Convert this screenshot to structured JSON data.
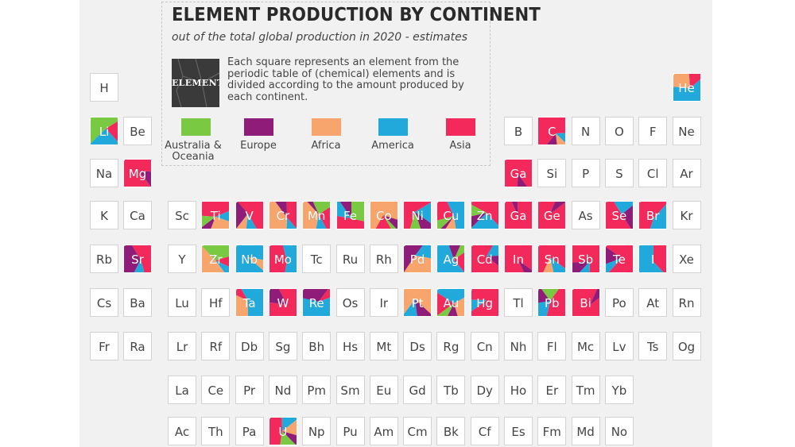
{
  "chart_data": {
    "type": "table",
    "title": "ELEMENT PRODUCTION BY CONTINENT",
    "subtitle": "out of the total global production in 2020 - estimates",
    "description": "Each square represents an element from the periodic table of (chemical) elements and is divided according to the amount produced by each continent.",
    "example_label": "ELEMENT",
    "continents": [
      {
        "key": "oceania",
        "name": "Australia & Oceania",
        "color": "#7ac943"
      },
      {
        "key": "europe",
        "name": "Europe",
        "color": "#8e1c78"
      },
      {
        "key": "africa",
        "name": "Africa",
        "color": "#f7a56c"
      },
      {
        "key": "america",
        "name": "America",
        "color": "#22a9dc"
      },
      {
        "key": "asia",
        "name": "Asia",
        "color": "#f2295a"
      }
    ],
    "elements": [
      {
        "s": "H",
        "r": 1,
        "c": 1
      },
      {
        "s": "He",
        "r": 1,
        "c": 18,
        "share": {
          "africa": 0.25,
          "america": 0.6,
          "asia": 0.15
        }
      },
      {
        "s": "Li",
        "r": 2,
        "c": 1,
        "share": {
          "oceania": 0.5,
          "america": 0.3,
          "asia": 0.2
        }
      },
      {
        "s": "Be",
        "r": 2,
        "c": 2
      },
      {
        "s": "B",
        "r": 2,
        "c": 13
      },
      {
        "s": "C",
        "r": 2,
        "c": 14,
        "share": {
          "asia": 0.7,
          "europe": 0.1,
          "america": 0.1,
          "africa": 0.1
        }
      },
      {
        "s": "N",
        "r": 2,
        "c": 15
      },
      {
        "s": "O",
        "r": 2,
        "c": 16
      },
      {
        "s": "F",
        "r": 2,
        "c": 17
      },
      {
        "s": "Ne",
        "r": 2,
        "c": 18
      },
      {
        "s": "Na",
        "r": 3,
        "c": 1
      },
      {
        "s": "Mg",
        "r": 3,
        "c": 2,
        "share": {
          "asia": 0.85,
          "europe": 0.15
        }
      },
      {
        "s": "Ga",
        "r": 3,
        "c": 13,
        "share": {
          "asia": 0.9,
          "europe": 0.1
        }
      },
      {
        "s": "Si",
        "r": 3,
        "c": 14
      },
      {
        "s": "P",
        "r": 3,
        "c": 15
      },
      {
        "s": "S",
        "r": 3,
        "c": 16
      },
      {
        "s": "Cl",
        "r": 3,
        "c": 17
      },
      {
        "s": "Ar",
        "r": 3,
        "c": 18
      },
      {
        "s": "K",
        "r": 4,
        "c": 1
      },
      {
        "s": "Ca",
        "r": 4,
        "c": 2
      },
      {
        "s": "Sc",
        "r": 4,
        "c": 3
      },
      {
        "s": "Ti",
        "r": 4,
        "c": 4,
        "share": {
          "africa": 0.25,
          "asia": 0.45,
          "oceania": 0.1,
          "america": 0.1,
          "europe": 0.1
        }
      },
      {
        "s": "V",
        "r": 4,
        "c": 5,
        "share": {
          "asia": 0.55,
          "europe": 0.25,
          "america": 0.1,
          "africa": 0.1
        }
      },
      {
        "s": "Cr",
        "r": 4,
        "c": 6,
        "share": {
          "africa": 0.45,
          "asia": 0.35,
          "europe": 0.1,
          "america": 0.1
        }
      },
      {
        "s": "Mn",
        "r": 4,
        "c": 7,
        "share": {
          "africa": 0.4,
          "asia": 0.25,
          "oceania": 0.2,
          "america": 0.1,
          "europe": 0.05
        }
      },
      {
        "s": "Fe",
        "r": 4,
        "c": 8,
        "share": {
          "asia": 0.45,
          "oceania": 0.3,
          "america": 0.15,
          "europe": 0.1
        }
      },
      {
        "s": "Co",
        "r": 4,
        "c": 9,
        "share": {
          "africa": 0.7,
          "asia": 0.15,
          "europe": 0.1,
          "oceania": 0.05
        }
      },
      {
        "s": "Ni",
        "r": 4,
        "c": 10,
        "share": {
          "asia": 0.55,
          "europe": 0.15,
          "oceania": 0.1,
          "america": 0.2
        }
      },
      {
        "s": "Cu",
        "r": 4,
        "c": 11,
        "share": {
          "america": 0.5,
          "asia": 0.25,
          "africa": 0.1,
          "oceania": 0.1,
          "europe": 0.05
        }
      },
      {
        "s": "Zn",
        "r": 4,
        "c": 12,
        "share": {
          "asia": 0.5,
          "america": 0.3,
          "oceania": 0.1,
          "europe": 0.1
        }
      },
      {
        "s": "Ga",
        "r": 4,
        "c": 13,
        "share": {
          "asia": 0.95,
          "europe": 0.05
        }
      },
      {
        "s": "Ge",
        "r": 4,
        "c": 14,
        "share": {
          "asia": 0.9,
          "europe": 0.1
        }
      },
      {
        "s": "As",
        "r": 4,
        "c": 15
      },
      {
        "s": "Se",
        "r": 4,
        "c": 16,
        "share": {
          "asia": 0.55,
          "europe": 0.25,
          "america": 0.2
        }
      },
      {
        "s": "Br",
        "r": 4,
        "c": 17,
        "share": {
          "america": 0.4,
          "asia": 0.6
        }
      },
      {
        "s": "Kr",
        "r": 4,
        "c": 18
      },
      {
        "s": "Rb",
        "r": 5,
        "c": 1
      },
      {
        "s": "Sr",
        "r": 5,
        "c": 2,
        "share": {
          "asia": 0.5,
          "europe": 0.4,
          "america": 0.1
        }
      },
      {
        "s": "Y",
        "r": 5,
        "c": 3
      },
      {
        "s": "Zr",
        "r": 5,
        "c": 4,
        "share": {
          "oceania": 0.35,
          "africa": 0.45,
          "america": 0.1,
          "asia": 0.1
        }
      },
      {
        "s": "Nb",
        "r": 5,
        "c": 5,
        "share": {
          "america": 0.9,
          "africa": 0.1
        }
      },
      {
        "s": "Mo",
        "r": 5,
        "c": 6,
        "share": {
          "asia": 0.5,
          "america": 0.5
        }
      },
      {
        "s": "Tc",
        "r": 5,
        "c": 7
      },
      {
        "s": "Ru",
        "r": 5,
        "c": 8
      },
      {
        "s": "Rh",
        "r": 5,
        "c": 9
      },
      {
        "s": "Pd",
        "r": 5,
        "c": 10,
        "share": {
          "europe": 0.4,
          "africa": 0.4,
          "america": 0.2
        }
      },
      {
        "s": "Ag",
        "r": 5,
        "c": 11,
        "share": {
          "america": 0.6,
          "asia": 0.2,
          "europe": 0.1,
          "oceania": 0.1
        }
      },
      {
        "s": "Cd",
        "r": 5,
        "c": 12,
        "share": {
          "asia": 0.75,
          "america": 0.15,
          "europe": 0.1
        }
      },
      {
        "s": "In",
        "r": 5,
        "c": 13,
        "share": {
          "asia": 0.9,
          "europe": 0.1
        }
      },
      {
        "s": "Sn",
        "r": 5,
        "c": 14,
        "share": {
          "asia": 0.75,
          "america": 0.15,
          "africa": 0.1
        }
      },
      {
        "s": "Sb",
        "r": 5,
        "c": 15,
        "share": {
          "asia": 0.75,
          "europe": 0.15,
          "america": 0.1
        }
      },
      {
        "s": "Te",
        "r": 5,
        "c": 16,
        "share": {
          "asia": 0.75,
          "europe": 0.15,
          "america": 0.1
        }
      },
      {
        "s": "I",
        "r": 5,
        "c": 17,
        "share": {
          "america": 0.6,
          "asia": 0.4
        }
      },
      {
        "s": "Xe",
        "r": 5,
        "c": 18
      },
      {
        "s": "Cs",
        "r": 6,
        "c": 1
      },
      {
        "s": "Ba",
        "r": 6,
        "c": 2
      },
      {
        "s": "Lu",
        "r": 6,
        "c": 3
      },
      {
        "s": "Hf",
        "r": 6,
        "c": 4
      },
      {
        "s": "Ta",
        "r": 6,
        "c": 5,
        "share": {
          "america": 0.6,
          "africa": 0.3,
          "asia": 0.1
        }
      },
      {
        "s": "W",
        "r": 6,
        "c": 6,
        "share": {
          "asia": 0.8,
          "europe": 0.2
        }
      },
      {
        "s": "Re",
        "r": 6,
        "c": 7,
        "share": {
          "america": 0.6,
          "europe": 0.3,
          "asia": 0.1
        }
      },
      {
        "s": "Os",
        "r": 6,
        "c": 8
      },
      {
        "s": "Ir",
        "r": 6,
        "c": 9
      },
      {
        "s": "Pt",
        "r": 6,
        "c": 10,
        "share": {
          "africa": 0.7,
          "europe": 0.15,
          "america": 0.15
        }
      },
      {
        "s": "Au",
        "r": 6,
        "c": 11,
        "share": {
          "africa": 0.25,
          "america": 0.35,
          "asia": 0.2,
          "europe": 0.1,
          "oceania": 0.1
        }
      },
      {
        "s": "Hg",
        "r": 6,
        "c": 12,
        "share": {
          "asia": 0.9,
          "america": 0.1
        }
      },
      {
        "s": "Tl",
        "r": 6,
        "c": 13
      },
      {
        "s": "Pb",
        "r": 6,
        "c": 14,
        "share": {
          "asia": 0.5,
          "america": 0.2,
          "oceania": 0.15,
          "europe": 0.15
        }
      },
      {
        "s": "Bi",
        "r": 6,
        "c": 15,
        "share": {
          "asia": 0.9,
          "europe": 0.1
        }
      },
      {
        "s": "Po",
        "r": 6,
        "c": 16
      },
      {
        "s": "At",
        "r": 6,
        "c": 17
      },
      {
        "s": "Rn",
        "r": 6,
        "c": 18
      },
      {
        "s": "Fr",
        "r": 7,
        "c": 1
      },
      {
        "s": "Ra",
        "r": 7,
        "c": 2
      },
      {
        "s": "Lr",
        "r": 7,
        "c": 3
      },
      {
        "s": "Rf",
        "r": 7,
        "c": 4
      },
      {
        "s": "Db",
        "r": 7,
        "c": 5
      },
      {
        "s": "Sg",
        "r": 7,
        "c": 6
      },
      {
        "s": "Bh",
        "r": 7,
        "c": 7
      },
      {
        "s": "Hs",
        "r": 7,
        "c": 8
      },
      {
        "s": "Mt",
        "r": 7,
        "c": 9
      },
      {
        "s": "Ds",
        "r": 7,
        "c": 10
      },
      {
        "s": "Rg",
        "r": 7,
        "c": 11
      },
      {
        "s": "Cn",
        "r": 7,
        "c": 12
      },
      {
        "s": "Nh",
        "r": 7,
        "c": 13
      },
      {
        "s": "Fl",
        "r": 7,
        "c": 14
      },
      {
        "s": "Mc",
        "r": 7,
        "c": 15
      },
      {
        "s": "Lv",
        "r": 7,
        "c": 16
      },
      {
        "s": "Ts",
        "r": 7,
        "c": 17
      },
      {
        "s": "Og",
        "r": 7,
        "c": 18
      },
      {
        "s": "La",
        "r": 8,
        "c": 3
      },
      {
        "s": "Ce",
        "r": 8,
        "c": 4
      },
      {
        "s": "Pr",
        "r": 8,
        "c": 5
      },
      {
        "s": "Nd",
        "r": 8,
        "c": 6
      },
      {
        "s": "Pm",
        "r": 8,
        "c": 7
      },
      {
        "s": "Sm",
        "r": 8,
        "c": 8
      },
      {
        "s": "Eu",
        "r": 8,
        "c": 9
      },
      {
        "s": "Gd",
        "r": 8,
        "c": 10
      },
      {
        "s": "Tb",
        "r": 8,
        "c": 11
      },
      {
        "s": "Dy",
        "r": 8,
        "c": 12
      },
      {
        "s": "Ho",
        "r": 8,
        "c": 13
      },
      {
        "s": "Er",
        "r": 8,
        "c": 14
      },
      {
        "s": "Tm",
        "r": 8,
        "c": 15
      },
      {
        "s": "Yb",
        "r": 8,
        "c": 16
      },
      {
        "s": "Ac",
        "r": 9,
        "c": 3
      },
      {
        "s": "Th",
        "r": 9,
        "c": 4
      },
      {
        "s": "Pa",
        "r": 9,
        "c": 5
      },
      {
        "s": "U",
        "r": 9,
        "c": 6,
        "share": {
          "asia": 0.45,
          "oceania": 0.15,
          "africa": 0.15,
          "america": 0.15,
          "europe": 0.1
        }
      },
      {
        "s": "Np",
        "r": 9,
        "c": 7
      },
      {
        "s": "Pu",
        "r": 9,
        "c": 8
      },
      {
        "s": "Am",
        "r": 9,
        "c": 9
      },
      {
        "s": "Cm",
        "r": 9,
        "c": 10
      },
      {
        "s": "Bk",
        "r": 9,
        "c": 11
      },
      {
        "s": "Cf",
        "r": 9,
        "c": 12
      },
      {
        "s": "Es",
        "r": 9,
        "c": 13
      },
      {
        "s": "Fm",
        "r": 9,
        "c": 14
      },
      {
        "s": "Md",
        "r": 9,
        "c": 15
      },
      {
        "s": "No",
        "r": 9,
        "c": 16
      }
    ]
  }
}
